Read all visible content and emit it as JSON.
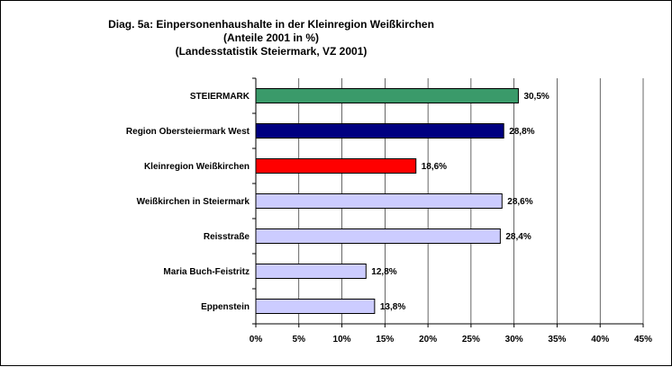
{
  "chart_data": {
    "type": "bar",
    "orientation": "horizontal",
    "title": [
      "Diag. 5a: Einpersonenhaushalte  in der Kleinregion Weißkirchen",
      "(Anteile 2001 in %)",
      "(Landesstatistik  Steiermark,  VZ 2001)"
    ],
    "categories": [
      "STEIERMARK",
      "Region Obersteiermark West",
      "Kleinregion Weißkirchen",
      "Weißkirchen in Steiermark",
      "Reisstraße",
      "Maria Buch-Feistritz",
      "Eppenstein"
    ],
    "values": [
      30.5,
      28.8,
      18.6,
      28.6,
      28.4,
      12.8,
      13.8
    ],
    "value_labels": [
      "30,5%",
      "28,8%",
      "18,6%",
      "28,6%",
      "28,4%",
      "12,8%",
      "13,8%"
    ],
    "bar_colors": [
      "#3a9a6a",
      "#000080",
      "#ff0000",
      "#ccccff",
      "#ccccff",
      "#ccccff",
      "#ccccff"
    ],
    "xlim": [
      0,
      45
    ],
    "xticks": [
      0,
      5,
      10,
      15,
      20,
      25,
      30,
      35,
      40,
      45
    ],
    "xtick_labels": [
      "0%",
      "5%",
      "10%",
      "15%",
      "20%",
      "25%",
      "30%",
      "35%",
      "40%",
      "45%"
    ],
    "xlabel": "",
    "ylabel": "",
    "grid": "vertical",
    "legend": "none"
  }
}
